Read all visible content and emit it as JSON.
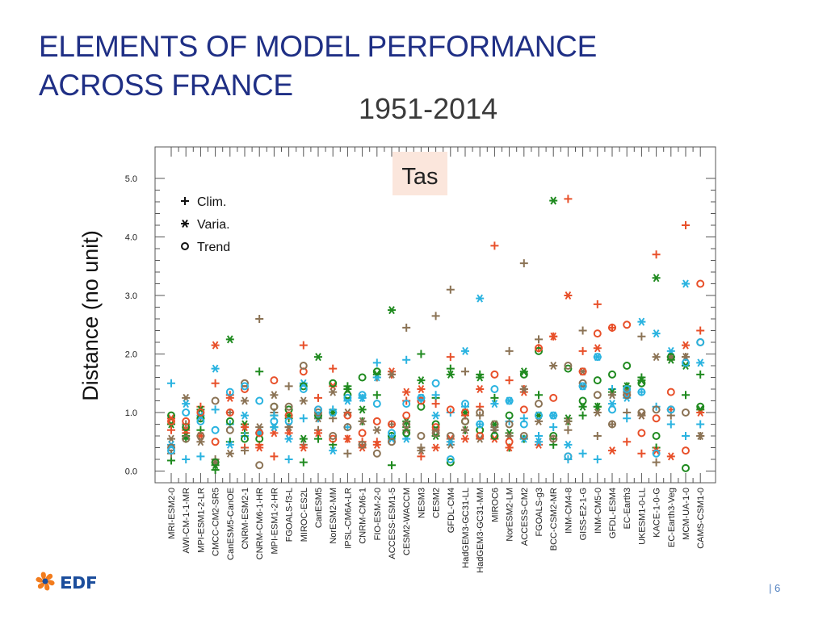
{
  "slide": {
    "title_line1": "ELEMENTS OF MODEL PERFORMANCE",
    "title_line2": "ACROSS FRANCE",
    "period": "1951-2014",
    "page_number": "| 6"
  },
  "colors": {
    "title": "#1f2f85",
    "series_palette": [
      "#1f8a1f",
      "#e8502a",
      "#8b7355",
      "#2ab3e0"
    ],
    "panel_label_bg": "#fbe6dc"
  },
  "chart_data": {
    "type": "scatter",
    "panel_label": "Tas",
    "ylabel": "Distance (no unit)",
    "xlabel": "",
    "ylim": [
      0,
      5.2
    ],
    "yticks": [
      0,
      1,
      2,
      3,
      4,
      5
    ],
    "ytick_labels": [
      "0.0",
      "1.0",
      "2.0",
      "3.0",
      "4.0",
      "5.0"
    ],
    "grid": false,
    "legend": {
      "placement": "top-left",
      "entries": [
        {
          "label": "Clim.",
          "marker": "plus"
        },
        {
          "label": "Varia.",
          "marker": "asterisk"
        },
        {
          "label": "Trend",
          "marker": "circle"
        }
      ]
    },
    "categories": [
      "MRI-ESM2-0",
      "AWI-CM-1-1-MR",
      "MPI-ESM1-2-LR",
      "CMCC-CM2-SR5",
      "CanESM5-CanOE",
      "CNRM-ESM2-1",
      "CNRM-CM6-1-HR",
      "MPI-ESM1-2-HR",
      "FGOALS-f3-L",
      "MIROC-ES2L",
      "CanESM5",
      "NorESM2-MM",
      "IPSL-CM6A-LR",
      "CNRM-CM6-1",
      "FIO-ESM-2-0",
      "ACCESS-ESM1-5",
      "CESM2-WACCM",
      "NESM3",
      "CESM2",
      "GFDL-CM4",
      "HadGEM3-GC31-LL",
      "HadGEM3-GC31-MM",
      "MIROC6",
      "NorESM2-LM",
      "ACCESS-CM2",
      "FGOALS-g3",
      "BCC-CSM2-MR",
      "INM-CM4-8",
      "GISS-E2-1-G",
      "INM-CM5-0",
      "GFDL-ESM4",
      "EC-Earth3",
      "UKESM1-0-LL",
      "KACE-1-0-G",
      "EC-Earth3-Veg",
      "MCM-UA-1-0",
      "CAMS-CSM1-0"
    ],
    "series": [
      {
        "marker": "plus",
        "color": "#1f8a1f",
        "values": [
          0.18,
          0.55,
          0.7,
          0.02,
          0.5,
          0.65,
          1.7,
          0.95,
          0.9,
          0.15,
          0.55,
          0.45,
          1.45,
          0.85,
          1.3,
          0.1,
          0.75,
          2.0,
          1.25,
          1.75,
          0.7,
          1.65,
          1.25,
          0.4,
          0.55,
          1.3,
          0.45,
          0.85,
          0.95,
          1.1,
          1.4,
          1.45,
          1.6,
          0.4,
          1.95,
          1.3,
          1.65
        ]
      },
      {
        "marker": "plus",
        "color": "#e8502a",
        "values": [
          0.7,
          0.65,
          1.1,
          1.5,
          1.3,
          0.4,
          0.45,
          0.25,
          0.75,
          2.15,
          1.25,
          1.75,
          0.55,
          0.5,
          0.5,
          1.65,
          1.2,
          0.25,
          1.15,
          1.95,
          0.95,
          1.1,
          3.85,
          1.55,
          1.4,
          2.1,
          2.3,
          4.65,
          2.05,
          2.85,
          2.45,
          0.5,
          0.3,
          3.7,
          1.05,
          4.2,
          2.4
        ]
      },
      {
        "marker": "plus",
        "color": "#8b7355",
        "values": [
          0.3,
          0.8,
          0.9,
          0.2,
          1.0,
          0.35,
          2.6,
          1.0,
          1.45,
          0.45,
          0.7,
          0.9,
          0.3,
          0.45,
          1.6,
          0.8,
          2.45,
          0.4,
          2.65,
          3.1,
          1.7,
          0.95,
          0.75,
          2.05,
          3.55,
          2.25,
          0.55,
          0.7,
          2.4,
          0.6,
          0.8,
          1.0,
          2.3,
          0.15,
          0.95,
          1.95,
          0.6
        ]
      },
      {
        "marker": "plus",
        "color": "#2ab3e0",
        "values": [
          1.5,
          0.2,
          0.25,
          1.05,
          0.8,
          0.6,
          0.65,
          0.95,
          0.2,
          0.9,
          0.9,
          1.05,
          0.75,
          1.25,
          1.85,
          0.6,
          1.9,
          1.2,
          1.3,
          1.0,
          1.1,
          0.8,
          0.7,
          0.85,
          0.9,
          0.6,
          0.75,
          0.2,
          0.3,
          0.2,
          1.4,
          0.9,
          1.35,
          1.1,
          0.8,
          0.6,
          0.8
        ]
      },
      {
        "marker": "asterisk",
        "color": "#1f8a1f",
        "values": [
          0.8,
          0.6,
          1.05,
          0.1,
          2.25,
          0.8,
          0.65,
          0.75,
          0.95,
          0.55,
          1.95,
          1.0,
          1.4,
          1.05,
          1.65,
          2.75,
          0.85,
          1.55,
          0.6,
          1.65,
          1.0,
          1.6,
          0.8,
          0.65,
          1.7,
          0.95,
          4.62,
          0.9,
          1.1,
          1.1,
          1.35,
          1.45,
          1.55,
          3.3,
          1.9,
          1.8,
          1.05
        ]
      },
      {
        "marker": "asterisk",
        "color": "#e8502a",
        "values": [
          0.9,
          0.7,
          0.6,
          2.15,
          1.25,
          0.75,
          0.4,
          0.65,
          0.65,
          0.4,
          0.65,
          1.45,
          0.55,
          0.4,
          0.45,
          1.7,
          1.35,
          1.4,
          0.4,
          0.55,
          0.55,
          1.4,
          0.55,
          0.4,
          1.35,
          0.45,
          2.3,
          3.0,
          1.45,
          2.1,
          0.35,
          1.3,
          0.95,
          0.35,
          0.25,
          2.15,
          1.0
        ]
      },
      {
        "marker": "asterisk",
        "color": "#8b7355",
        "values": [
          0.55,
          1.25,
          0.5,
          0.15,
          0.3,
          1.2,
          0.75,
          1.3,
          0.75,
          1.2,
          0.9,
          1.35,
          1.0,
          0.85,
          0.7,
          1.65,
          0.7,
          0.35,
          0.7,
          0.45,
          0.7,
          0.55,
          0.7,
          0.6,
          1.4,
          0.85,
          1.8,
          0.85,
          1.7,
          1.0,
          1.3,
          1.35,
          0.95,
          1.95,
          1.95,
          1.95,
          0.6
        ]
      },
      {
        "marker": "asterisk",
        "color": "#2ab3e0",
        "values": [
          0.45,
          1.15,
          0.95,
          1.75,
          0.45,
          0.95,
          0.65,
          0.75,
          0.55,
          1.5,
          0.95,
          0.35,
          1.2,
          1.25,
          1.6,
          0.55,
          0.55,
          1.25,
          0.95,
          0.5,
          2.05,
          2.95,
          1.15,
          1.2,
          0.55,
          0.5,
          0.95,
          0.45,
          1.45,
          1.95,
          1.15,
          1.25,
          2.55,
          2.35,
          2.05,
          3.2,
          1.85
        ]
      },
      {
        "marker": "circle",
        "color": "#1f8a1f",
        "values": [
          0.95,
          0.75,
          0.9,
          0.15,
          0.85,
          0.55,
          0.55,
          1.1,
          1.05,
          1.45,
          0.95,
          1.5,
          1.3,
          1.6,
          1.7,
          0.6,
          0.65,
          1.1,
          0.8,
          0.15,
          0.85,
          0.7,
          0.6,
          0.95,
          1.65,
          2.05,
          0.6,
          1.75,
          1.2,
          1.55,
          1.65,
          1.8,
          1.5,
          0.6,
          1.95,
          0.05,
          1.1
        ]
      },
      {
        "marker": "circle",
        "color": "#e8502a",
        "values": [
          0.85,
          0.85,
          1.0,
          0.5,
          1.0,
          1.4,
          0.65,
          1.55,
          0.95,
          1.7,
          1.05,
          0.55,
          0.95,
          0.65,
          0.85,
          0.8,
          0.95,
          1.2,
          0.75,
          1.05,
          1.0,
          0.6,
          1.65,
          0.5,
          1.05,
          2.1,
          1.25,
          0.25,
          1.7,
          2.35,
          2.45,
          2.5,
          0.65,
          0.9,
          1.35,
          0.35,
          3.2
        ]
      },
      {
        "marker": "circle",
        "color": "#8b7355",
        "values": [
          0.4,
          0.55,
          0.6,
          1.2,
          0.7,
          1.5,
          0.1,
          1.1,
          1.1,
          1.8,
          1.0,
          0.6,
          0.75,
          0.45,
          0.3,
          0.5,
          0.8,
          0.6,
          0.65,
          0.6,
          0.85,
          1.0,
          0.8,
          0.8,
          0.6,
          1.15,
          0.55,
          1.8,
          1.5,
          1.3,
          0.8,
          1.3,
          1.0,
          1.05,
          1.05,
          1.0,
          2.2
        ]
      },
      {
        "marker": "circle",
        "color": "#2ab3e0",
        "values": [
          0.35,
          1.0,
          0.85,
          0.7,
          1.35,
          1.45,
          1.2,
          0.85,
          0.85,
          1.4,
          1.05,
          1.0,
          1.25,
          1.3,
          1.15,
          0.65,
          1.15,
          1.25,
          1.5,
          0.2,
          1.15,
          0.8,
          1.4,
          1.2,
          0.8,
          0.95,
          0.95,
          0.25,
          1.45,
          1.95,
          1.05,
          1.4,
          1.35,
          0.3,
          1.05,
          1.85,
          2.2
        ]
      }
    ]
  }
}
